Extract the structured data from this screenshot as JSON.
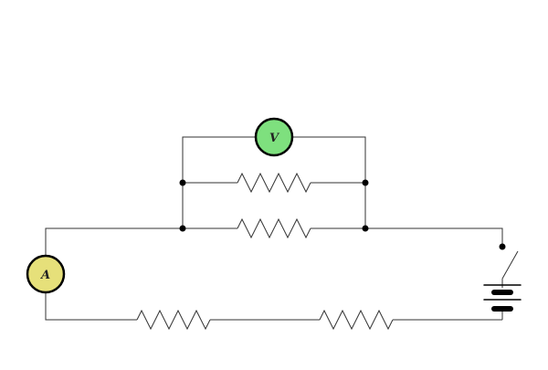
{
  "diagram": {
    "voltmeter": {
      "label": "V",
      "fill_color": "#7ee07e"
    },
    "ammeter": {
      "label": "A",
      "fill_color": "#e6e07a"
    },
    "wire_color": "#333333",
    "node_color": "#000000"
  }
}
